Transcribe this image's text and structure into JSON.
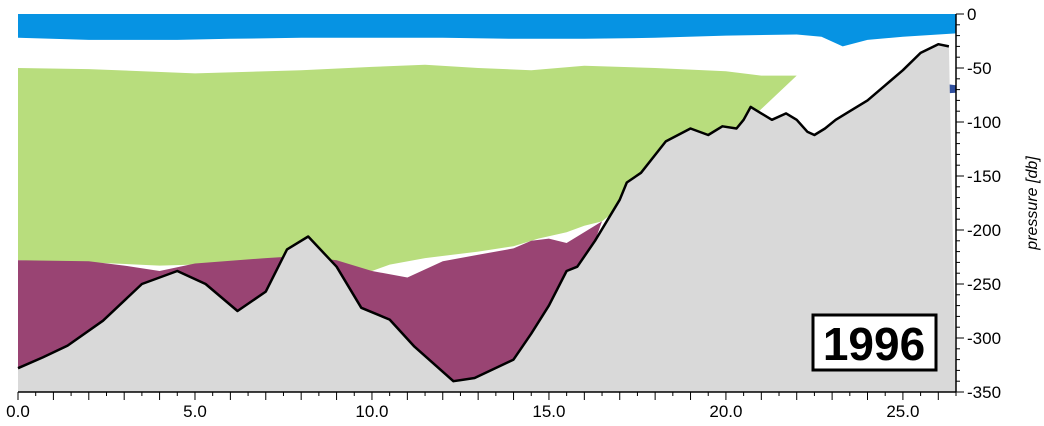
{
  "chart_data": {
    "type": "area",
    "year_label": "1996",
    "xlim": [
      0,
      26.5
    ],
    "ylim": [
      0,
      350
    ],
    "y_inverted": true,
    "y_axis_side": "right",
    "ylabel": "pressure [db]",
    "xlabel": "",
    "grid": false,
    "x_ticks": [
      {
        "value": 0,
        "label": "0.0"
      },
      {
        "value": 5,
        "label": "5.0"
      },
      {
        "value": 10,
        "label": "10.0"
      },
      {
        "value": 15,
        "label": "15.0"
      },
      {
        "value": 20,
        "label": "20.0"
      },
      {
        "value": 25,
        "label": "25.0"
      }
    ],
    "y_ticks": [
      {
        "value": 0,
        "label": "0"
      },
      {
        "value": 50,
        "label": "-50"
      },
      {
        "value": 100,
        "label": "-100"
      },
      {
        "value": 150,
        "label": "-150"
      },
      {
        "value": 200,
        "label": "-200"
      },
      {
        "value": 250,
        "label": "-250"
      },
      {
        "value": 300,
        "label": "-300"
      },
      {
        "value": 350,
        "label": "-350"
      }
    ],
    "layers": [
      {
        "name": "surface-layer",
        "color": "#0693E3",
        "top": [
          [
            0,
            0
          ],
          [
            26.5,
            0
          ]
        ],
        "bottom": [
          [
            0,
            22
          ],
          [
            2,
            24
          ],
          [
            4.5,
            24
          ],
          [
            6,
            23
          ],
          [
            8,
            22
          ],
          [
            10,
            22
          ],
          [
            12,
            22
          ],
          [
            14,
            23
          ],
          [
            16,
            23
          ],
          [
            18,
            22
          ],
          [
            20,
            20
          ],
          [
            22,
            19
          ],
          [
            22.7,
            21
          ],
          [
            23.3,
            30
          ],
          [
            24,
            24
          ],
          [
            25,
            21
          ],
          [
            26,
            19
          ],
          [
            26.5,
            18
          ]
        ]
      },
      {
        "name": "upper-intermediate-layer",
        "color": "#B8DD7D",
        "top": [
          [
            0,
            50
          ],
          [
            2,
            51
          ],
          [
            5,
            55
          ],
          [
            8,
            52
          ],
          [
            10,
            49
          ],
          [
            11.5,
            47
          ],
          [
            13,
            50
          ],
          [
            14.5,
            52
          ],
          [
            16,
            48
          ],
          [
            18,
            50
          ],
          [
            20,
            53
          ],
          [
            21,
            57
          ],
          [
            22,
            57
          ]
        ],
        "bottom": [
          [
            0,
            228
          ],
          [
            2,
            230
          ],
          [
            4,
            233
          ],
          [
            6,
            231
          ],
          [
            8,
            228
          ],
          [
            9,
            236
          ],
          [
            10,
            238
          ],
          [
            10.5,
            232
          ],
          [
            11.5,
            226
          ],
          [
            13,
            220
          ],
          [
            14,
            215
          ],
          [
            14.7,
            208
          ],
          [
            15.5,
            202
          ],
          [
            16,
            196
          ],
          [
            16.5,
            192
          ],
          [
            18,
            152
          ],
          [
            20,
            118
          ],
          [
            21,
            88
          ],
          [
            22,
            57
          ]
        ]
      },
      {
        "name": "lower-layer",
        "color": "#994473",
        "top": [
          [
            0,
            228
          ],
          [
            2,
            229
          ],
          [
            3,
            233
          ],
          [
            4,
            238
          ],
          [
            5,
            231
          ],
          [
            7,
            226
          ],
          [
            8,
            224
          ],
          [
            9,
            228
          ],
          [
            10,
            238
          ],
          [
            11,
            244
          ],
          [
            12,
            229
          ],
          [
            13,
            223
          ],
          [
            14,
            217
          ],
          [
            14.5,
            210
          ],
          [
            15,
            208
          ],
          [
            15.5,
            212
          ],
          [
            16.5,
            192
          ]
        ],
        "bottom": "bottom_profile"
      },
      {
        "name": "deep-patch",
        "color": "#2F4F9E",
        "top": [
          [
            25.1,
            57
          ],
          [
            25.6,
            61
          ],
          [
            26,
            64
          ],
          [
            26.5,
            66
          ]
        ],
        "bottom": [
          [
            26.5,
            73
          ],
          [
            26,
            74
          ],
          [
            25.5,
            73
          ],
          [
            25.3,
            68
          ],
          [
            25.1,
            57
          ]
        ]
      }
    ],
    "bottom_profile": [
      [
        0,
        328
      ],
      [
        0.7,
        318
      ],
      [
        1.4,
        307
      ],
      [
        2.4,
        284
      ],
      [
        3.5,
        250
      ],
      [
        4.5,
        238
      ],
      [
        5.3,
        250
      ],
      [
        6.2,
        275
      ],
      [
        7,
        257
      ],
      [
        7.6,
        218
      ],
      [
        8.2,
        206
      ],
      [
        9,
        234
      ],
      [
        9.7,
        272
      ],
      [
        10.5,
        283
      ],
      [
        11.2,
        308
      ],
      [
        12.3,
        340
      ],
      [
        12.9,
        337
      ],
      [
        14,
        320
      ],
      [
        14.5,
        296
      ],
      [
        15,
        270
      ],
      [
        15.5,
        238
      ],
      [
        15.8,
        234
      ],
      [
        16.3,
        210
      ],
      [
        17,
        172
      ],
      [
        17.2,
        156
      ],
      [
        17.6,
        147
      ],
      [
        18.3,
        118
      ],
      [
        19,
        106
      ],
      [
        19.5,
        112
      ],
      [
        19.9,
        104
      ],
      [
        20.3,
        106
      ],
      [
        20.5,
        98
      ],
      [
        20.7,
        86
      ],
      [
        21,
        92
      ],
      [
        21.3,
        98
      ],
      [
        21.7,
        92
      ],
      [
        22,
        98
      ],
      [
        22.3,
        109
      ],
      [
        22.5,
        112
      ],
      [
        22.8,
        106
      ],
      [
        23.1,
        98
      ],
      [
        23.5,
        90
      ],
      [
        24,
        80
      ],
      [
        24.5,
        66
      ],
      [
        25,
        52
      ],
      [
        25.5,
        36
      ],
      [
        26,
        28
      ],
      [
        26.3,
        30
      ],
      [
        26.7,
        40
      ],
      [
        27.1,
        34
      ],
      [
        27.5,
        30
      ],
      [
        27.9,
        40
      ],
      [
        28.3,
        50
      ],
      [
        28.7,
        42
      ],
      [
        29.1,
        38
      ],
      [
        29.5,
        45
      ],
      [
        29.8,
        54
      ]
    ]
  }
}
